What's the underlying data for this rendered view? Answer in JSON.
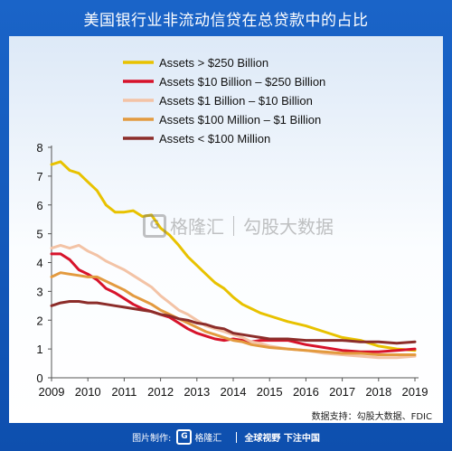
{
  "title": "美国银行业非流动信贷在总贷款中的占比",
  "watermark": {
    "brand": "格隆汇",
    "product": "勾股大数据"
  },
  "source": "数据支持：勾股大数据、FDIC",
  "footer": {
    "label": "图片制作:",
    "brand": "格隆汇",
    "slogan": "全球视野 下注中国"
  },
  "chart_data": {
    "type": "line",
    "title": "",
    "xlabel": "",
    "ylabel": "",
    "xlim": [
      2009,
      2019
    ],
    "ylim": [
      0,
      8
    ],
    "x_ticks": [
      "2009",
      "2010",
      "2011",
      "2012",
      "2013",
      "2014",
      "2015",
      "2016",
      "2017",
      "2018",
      "2019"
    ],
    "y_ticks": [
      "0",
      "1",
      "2",
      "3",
      "4",
      "5",
      "6",
      "7",
      "8"
    ],
    "legend_position": "top",
    "series": [
      {
        "name": "Assets > $250 Billion",
        "color": "#e8c200",
        "x": [
          2009.0,
          2009.25,
          2009.5,
          2009.75,
          2010.0,
          2010.25,
          2010.5,
          2010.75,
          2011.0,
          2011.25,
          2011.5,
          2011.75,
          2012.0,
          2012.25,
          2012.5,
          2012.75,
          2013.0,
          2013.25,
          2013.5,
          2013.75,
          2014.0,
          2014.25,
          2014.5,
          2014.75,
          2015.0,
          2015.5,
          2016.0,
          2016.5,
          2017.0,
          2017.5,
          2018.0,
          2018.5,
          2019.0
        ],
        "values": [
          7.4,
          7.5,
          7.2,
          7.1,
          6.8,
          6.5,
          6.0,
          5.75,
          5.75,
          5.8,
          5.6,
          5.65,
          5.2,
          4.95,
          4.6,
          4.2,
          3.9,
          3.6,
          3.3,
          3.1,
          2.8,
          2.55,
          2.4,
          2.25,
          2.15,
          1.95,
          1.8,
          1.6,
          1.4,
          1.3,
          1.1,
          1.0,
          0.95
        ]
      },
      {
        "name": "Assets $10 Billion – $250 Billion",
        "color": "#d7132b",
        "x": [
          2009.0,
          2009.25,
          2009.5,
          2009.75,
          2010.0,
          2010.25,
          2010.5,
          2010.75,
          2011.0,
          2011.25,
          2011.5,
          2011.75,
          2012.0,
          2012.25,
          2012.5,
          2012.75,
          2013.0,
          2013.25,
          2013.5,
          2013.75,
          2014.0,
          2014.25,
          2014.5,
          2014.75,
          2015.0,
          2015.5,
          2016.0,
          2016.5,
          2017.0,
          2017.5,
          2018.0,
          2018.5,
          2019.0
        ],
        "values": [
          4.3,
          4.3,
          4.1,
          3.75,
          3.6,
          3.4,
          3.1,
          2.95,
          2.75,
          2.55,
          2.4,
          2.3,
          2.2,
          2.1,
          1.9,
          1.7,
          1.55,
          1.45,
          1.35,
          1.3,
          1.35,
          1.3,
          1.25,
          1.3,
          1.3,
          1.3,
          1.15,
          1.05,
          0.95,
          0.9,
          0.9,
          0.95,
          1.0
        ]
      },
      {
        "name": "Assets $1 Billion – $10 Billion",
        "color": "#f3c3a6",
        "x": [
          2009.0,
          2009.25,
          2009.5,
          2009.75,
          2010.0,
          2010.25,
          2010.5,
          2010.75,
          2011.0,
          2011.25,
          2011.5,
          2011.75,
          2012.0,
          2012.25,
          2012.5,
          2012.75,
          2013.0,
          2013.25,
          2013.5,
          2013.75,
          2014.0,
          2014.25,
          2014.5,
          2014.75,
          2015.0,
          2015.5,
          2016.0,
          2016.5,
          2017.0,
          2017.5,
          2018.0,
          2018.5,
          2019.0
        ],
        "values": [
          4.5,
          4.6,
          4.5,
          4.6,
          4.4,
          4.25,
          4.05,
          3.9,
          3.75,
          3.55,
          3.35,
          3.15,
          2.85,
          2.6,
          2.35,
          2.2,
          2.0,
          1.8,
          1.7,
          1.6,
          1.5,
          1.4,
          1.25,
          1.2,
          1.1,
          1.0,
          0.95,
          0.85,
          0.8,
          0.75,
          0.7,
          0.7,
          0.75
        ]
      },
      {
        "name": "Assets $100 Million – $1 Billion",
        "color": "#e39a3f",
        "x": [
          2009.0,
          2009.25,
          2009.5,
          2009.75,
          2010.0,
          2010.25,
          2010.5,
          2010.75,
          2011.0,
          2011.25,
          2011.5,
          2011.75,
          2012.0,
          2012.25,
          2012.5,
          2012.75,
          2013.0,
          2013.25,
          2013.5,
          2013.75,
          2014.0,
          2014.25,
          2014.5,
          2014.75,
          2015.0,
          2015.5,
          2016.0,
          2016.5,
          2017.0,
          2017.5,
          2018.0,
          2018.5,
          2019.0
        ],
        "values": [
          3.5,
          3.65,
          3.6,
          3.55,
          3.5,
          3.5,
          3.35,
          3.2,
          3.05,
          2.85,
          2.7,
          2.55,
          2.35,
          2.2,
          2.05,
          1.9,
          1.75,
          1.6,
          1.5,
          1.4,
          1.3,
          1.25,
          1.15,
          1.1,
          1.05,
          1.0,
          0.95,
          0.9,
          0.85,
          0.85,
          0.8,
          0.8,
          0.8
        ]
      },
      {
        "name": "Assets < $100 Million",
        "color": "#8c2d2a",
        "x": [
          2009.0,
          2009.25,
          2009.5,
          2009.75,
          2010.0,
          2010.25,
          2010.5,
          2010.75,
          2011.0,
          2011.25,
          2011.5,
          2011.75,
          2012.0,
          2012.25,
          2012.5,
          2012.75,
          2013.0,
          2013.25,
          2013.5,
          2013.75,
          2014.0,
          2014.25,
          2014.5,
          2014.75,
          2015.0,
          2015.5,
          2016.0,
          2016.5,
          2017.0,
          2017.5,
          2018.0,
          2018.5,
          2019.0
        ],
        "values": [
          2.5,
          2.6,
          2.65,
          2.65,
          2.6,
          2.6,
          2.55,
          2.5,
          2.45,
          2.4,
          2.35,
          2.3,
          2.2,
          2.15,
          2.05,
          2.0,
          1.9,
          1.85,
          1.75,
          1.7,
          1.55,
          1.5,
          1.45,
          1.4,
          1.35,
          1.35,
          1.3,
          1.3,
          1.3,
          1.25,
          1.25,
          1.2,
          1.25
        ]
      }
    ]
  }
}
